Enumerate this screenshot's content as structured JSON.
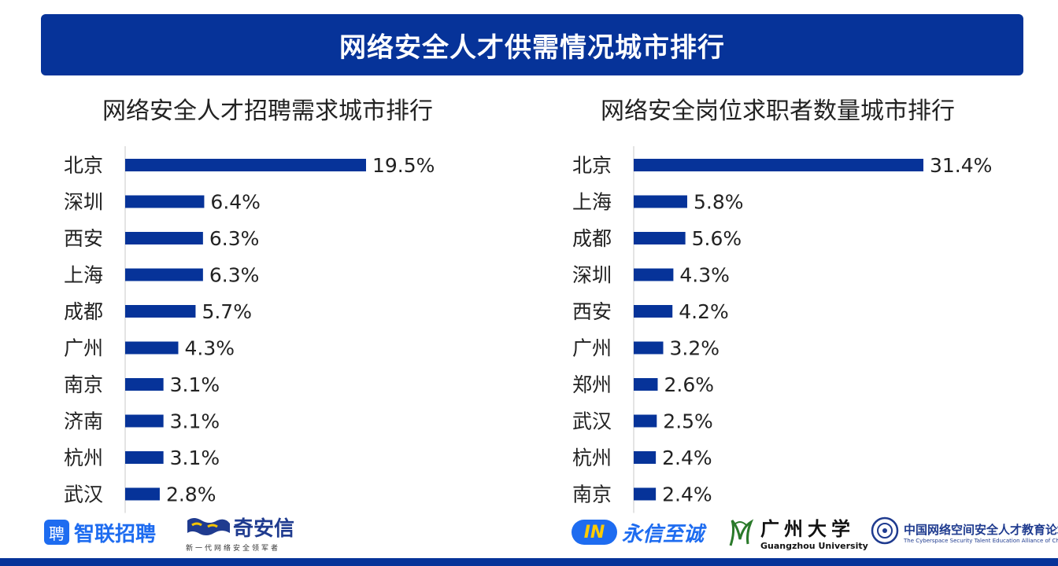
{
  "header": {
    "title": "网络安全人才供需情况城市排行"
  },
  "colors": {
    "banner": "#063399",
    "bar": "#063399"
  },
  "chart_data": [
    {
      "type": "bar",
      "orientation": "horizontal",
      "title": "网络安全人才招聘需求城市排行",
      "categories": [
        "北京",
        "深圳",
        "西安",
        "上海",
        "成都",
        "广州",
        "南京",
        "济南",
        "杭州",
        "武汉"
      ],
      "values": [
        19.5,
        6.4,
        6.3,
        6.3,
        5.7,
        4.3,
        3.1,
        3.1,
        3.1,
        2.8
      ],
      "labels": [
        "19.5%",
        "6.4%",
        "6.3%",
        "6.3%",
        "5.7%",
        "4.3%",
        "3.1%",
        "3.1%",
        "3.1%",
        "2.8%"
      ],
      "unit": "%",
      "grid": false
    },
    {
      "type": "bar",
      "orientation": "horizontal",
      "title": "网络安全岗位求职者数量城市排行",
      "categories": [
        "北京",
        "上海",
        "成都",
        "深圳",
        "西安",
        "广州",
        "郑州",
        "武汉",
        "杭州",
        "南京"
      ],
      "values": [
        31.4,
        5.8,
        5.6,
        4.3,
        4.2,
        3.2,
        2.6,
        2.5,
        2.4,
        2.4
      ],
      "labels": [
        "31.4%",
        "5.8%",
        "5.6%",
        "4.3%",
        "4.2%",
        "3.2%",
        "2.6%",
        "2.5%",
        "2.4%",
        "2.4%"
      ],
      "unit": "%",
      "grid": false
    }
  ],
  "logos": {
    "zhilian": {
      "mark": "聘",
      "text": "智联招聘",
      "icon": "zhilian-logo-icon"
    },
    "qax": {
      "text": "奇安信",
      "slogan": "新一代网络安全领军者",
      "icon": "qianxin-logo-icon"
    },
    "yongxin": {
      "mark": "IN",
      "text": "永信至诚",
      "icon": "yongxin-logo-icon"
    },
    "gzhu": {
      "text": "广州大学",
      "en": "Guangzhou University",
      "icon": "gzhu-logo-icon"
    },
    "alliance": {
      "text": "中国网络空间安全人才教育论坛",
      "en": "The Cyberspace Security Talent Education Alliance of China",
      "icon": "alliance-seal-icon"
    }
  }
}
